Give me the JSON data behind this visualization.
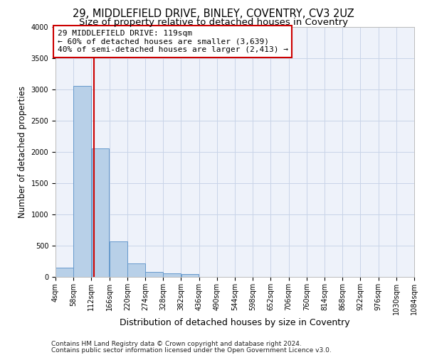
{
  "title1": "29, MIDDLEFIELD DRIVE, BINLEY, COVENTRY, CV3 2UZ",
  "title2": "Size of property relative to detached houses in Coventry",
  "xlabel": "Distribution of detached houses by size in Coventry",
  "ylabel": "Number of detached properties",
  "bin_edges": [
    4,
    58,
    112,
    166,
    220,
    274,
    328,
    382,
    436,
    490,
    544,
    598,
    652,
    706,
    760,
    814,
    868,
    922,
    976,
    1030,
    1084
  ],
  "bar_heights": [
    150,
    3050,
    2050,
    570,
    210,
    80,
    55,
    50,
    0,
    0,
    0,
    0,
    0,
    0,
    0,
    0,
    0,
    0,
    0,
    0
  ],
  "bar_color": "#b8d0e8",
  "bar_edgecolor": "#6699cc",
  "property_size": 119,
  "vline_color": "#cc0000",
  "annotation_line1": "29 MIDDLEFIELD DRIVE: 119sqm",
  "annotation_line2": "← 60% of detached houses are smaller (3,639)",
  "annotation_line3": "40% of semi-detached houses are larger (2,413) →",
  "annotation_box_color": "#cc0000",
  "ylim": [
    0,
    4000
  ],
  "yticks": [
    0,
    500,
    1000,
    1500,
    2000,
    2500,
    3000,
    3500,
    4000
  ],
  "grid_color": "#c8d4e8",
  "background_color": "#eef2fa",
  "footer1": "Contains HM Land Registry data © Crown copyright and database right 2024.",
  "footer2": "Contains public sector information licensed under the Open Government Licence v3.0.",
  "title1_fontsize": 10.5,
  "title2_fontsize": 9.5,
  "xlabel_fontsize": 9,
  "ylabel_fontsize": 8.5,
  "tick_fontsize": 7,
  "annotation_fontsize": 8,
  "footer_fontsize": 6.5
}
